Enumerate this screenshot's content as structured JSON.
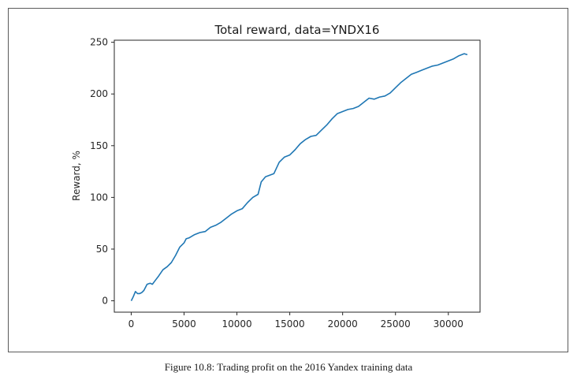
{
  "caption": "Figure 10.8: Trading profit on the 2016 Yandex training data",
  "chart_data": {
    "type": "line",
    "title": "Total reward, data=YNDX16",
    "xlabel": "",
    "ylabel": "Reward, %",
    "xlim": [
      -1600,
      33000
    ],
    "ylim": [
      -11,
      252
    ],
    "xticks": [
      0,
      5000,
      10000,
      15000,
      20000,
      25000,
      30000
    ],
    "yticks": [
      0,
      50,
      100,
      150,
      200,
      250
    ],
    "grid": false,
    "line_color": "#1f77b4",
    "series": [
      {
        "x": [
          0,
          200,
          400,
          600,
          800,
          1000,
          1200,
          1500,
          1800,
          2000,
          2300,
          2600,
          3000,
          3400,
          3800,
          4200,
          4600,
          5000,
          5200,
          5500,
          6000,
          6500,
          7000,
          7500,
          8000,
          8500,
          9000,
          9500,
          10000,
          10500,
          11000,
          11500,
          12000,
          12300,
          12700,
          13500,
          14000,
          14500,
          15000,
          15500,
          16000,
          16500,
          17000,
          17500,
          18000,
          18500,
          19000,
          19500,
          20000,
          20500,
          21000,
          21500,
          22000,
          22500,
          23000,
          23500,
          24000,
          24500,
          25000,
          25500,
          26000,
          26500,
          27000,
          27500,
          28000,
          28500,
          29000,
          29500,
          30000,
          30500,
          31000,
          31500,
          31800
        ],
        "y": [
          0,
          4,
          9,
          7,
          7,
          8,
          10,
          16,
          17,
          16,
          20,
          24,
          30,
          33,
          37,
          44,
          52,
          56,
          60,
          61,
          64,
          66,
          67,
          71,
          73,
          76,
          80,
          84,
          87,
          89,
          95,
          100,
          103,
          115,
          120,
          123,
          134,
          139,
          141,
          146,
          152,
          156,
          159,
          160,
          165,
          170,
          176,
          181,
          183,
          185,
          186,
          188,
          192,
          196,
          195,
          197,
          198,
          201,
          206,
          211,
          215,
          219,
          221,
          223,
          225,
          227,
          228,
          230,
          232,
          234,
          237,
          239,
          238
        ]
      }
    ]
  }
}
